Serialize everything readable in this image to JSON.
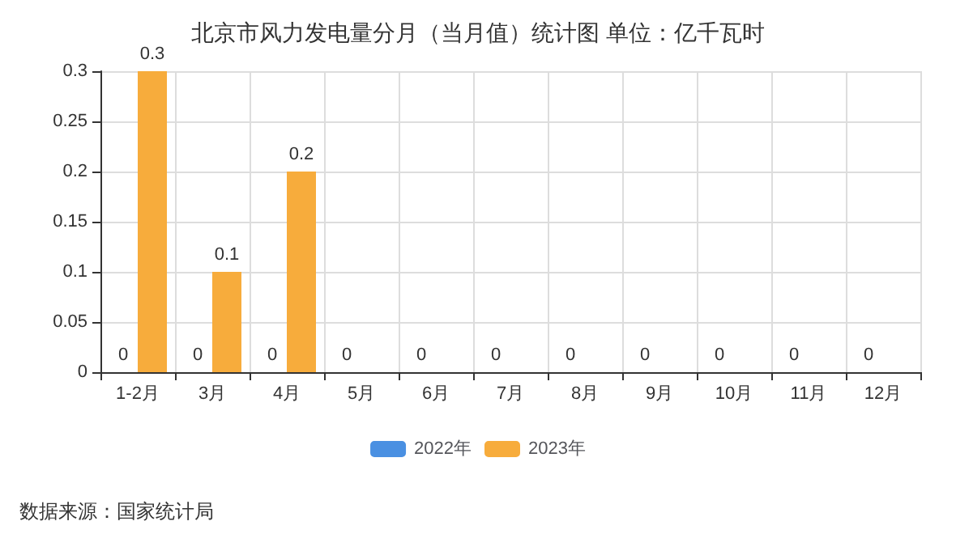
{
  "chart_data": {
    "type": "bar",
    "title": "北京市风力发电量分月（当月值）统计图 单位：亿千瓦时",
    "categories": [
      "1-2月",
      "3月",
      "4月",
      "5月",
      "6月",
      "7月",
      "8月",
      "9月",
      "10月",
      "11月",
      "12月"
    ],
    "series": [
      {
        "name": "2022年",
        "color": "#4a90e2",
        "values": [
          0,
          0,
          0,
          0,
          0,
          0,
          0,
          0,
          0,
          0,
          0
        ]
      },
      {
        "name": "2023年",
        "color": "#f7ac3c",
        "values": [
          0.3,
          0.1,
          0.2,
          null,
          null,
          null,
          null,
          null,
          null,
          null,
          null
        ]
      }
    ],
    "ylim": [
      0,
      0.3
    ],
    "yticks": [
      0,
      0.05,
      0.1,
      0.15,
      0.2,
      0.25,
      0.3
    ],
    "grid": true,
    "legend": "bottom",
    "data_labels": true,
    "annotations": [
      "数据来源：国家统计局"
    ]
  }
}
